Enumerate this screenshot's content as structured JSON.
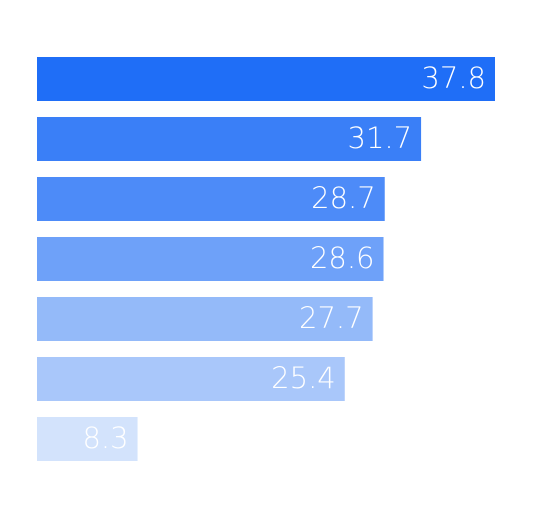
{
  "chart_data": {
    "type": "hbar",
    "values": [
      37.8,
      31.7,
      28.7,
      28.6,
      27.7,
      25.4,
      8.3
    ],
    "colors": [
      "#1f6ef7",
      "#3a7ff7",
      "#4d8bf8",
      "#6ea1f9",
      "#94baf9",
      "#a9c7fa",
      "#d3e3fc"
    ]
  }
}
